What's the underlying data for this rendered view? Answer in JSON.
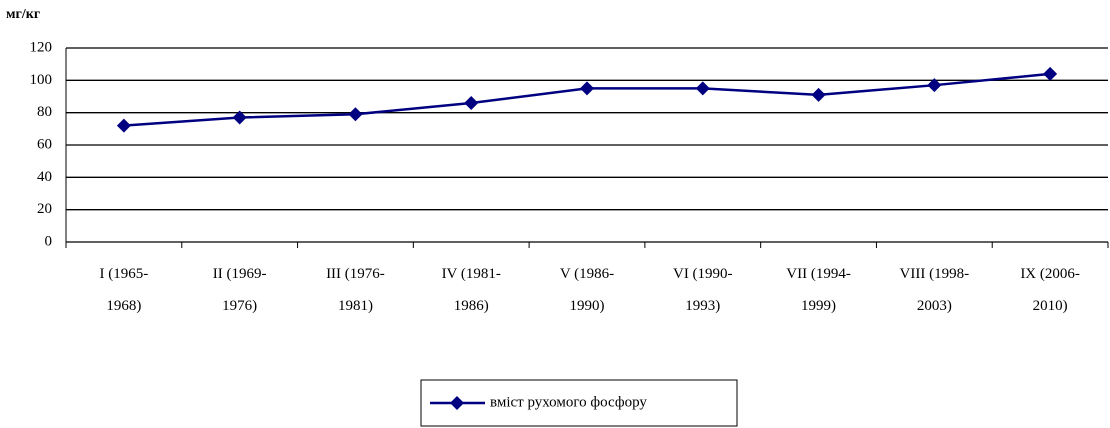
{
  "chart_data": {
    "type": "line",
    "y_label": "мг/кг",
    "categories": [
      "I (1965-1968)",
      "II (1969-1976)",
      "III (1976-1981)",
      "IV (1981-1986)",
      "V (1986-1990)",
      "VI (1990-1993)",
      "VII (1994-1999)",
      "VIII (1998-2003)",
      "IX (2006-2010)"
    ],
    "series": [
      {
        "name": "вміст рухомого фосфору",
        "color": "#000080",
        "values": [
          72,
          77,
          79,
          86,
          95,
          95,
          91,
          97,
          104
        ]
      }
    ],
    "ylim": [
      0,
      120
    ],
    "yticks": [
      0,
      20,
      40,
      60,
      80,
      100,
      120
    ],
    "grid": true,
    "legend": "bottom"
  }
}
